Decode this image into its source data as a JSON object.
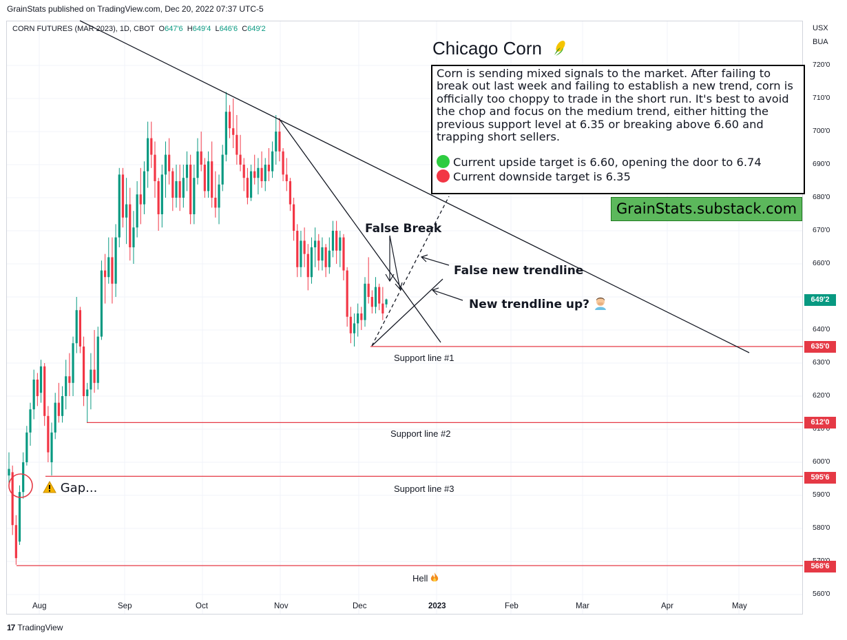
{
  "header": {
    "published": "GrainStats published on TradingView.com, Dec 20, 2022 07:37 UTC-5"
  },
  "legend": {
    "symbol": "CORN FUTURES (MAR 2023), 1D, CBOT",
    "o_label": "O",
    "o": "647'6",
    "h_label": "H",
    "h": "649'4",
    "l_label": "L",
    "l": "646'6",
    "c_label": "C",
    "c": "649'2"
  },
  "currency": {
    "line1": "USX",
    "line2": "BUA"
  },
  "title": {
    "text": "Chicago Corn",
    "icon": "corn-emoji-icon"
  },
  "textbox": {
    "paragraph": "Corn is sending mixed signals to the market. After failing to break out last week and failing to establish a new trend, corn is officially too choppy to trade in the short run. It's best to avoid the chop and focus on the medium trend, either hitting the previous support level at 6.35 or breaking above 6.60 and trapping short sellers.",
    "upside": "Current upside target is 6.60, opening the door to 6.74",
    "downside": "Current downside target is 6.35",
    "upside_color": "#2ecc40",
    "downside_color": "#f23645"
  },
  "brand": {
    "text": "GrainStats.substack.com",
    "bg": "#5cb85c"
  },
  "annotations": {
    "false_break": "False Break",
    "false_trendline": "False new trendline",
    "new_trendline": "New trendline up?",
    "new_trendline_icon": "facepalm-emoji-icon",
    "gap": "Gap...",
    "gap_icon": "warning-icon"
  },
  "support_labels": {
    "s1": "Support line #1",
    "s2": "Support line #2",
    "s3": "Support line #3",
    "hell": "Hell",
    "hell_icon": "fire-icon"
  },
  "price_tags": {
    "last": "649'2",
    "s1": "635'0",
    "s2": "612'0",
    "s3": "595'6",
    "s4": "568'6",
    "last_color": "#089981",
    "line_color": "#e53945"
  },
  "axis": {
    "y_ticks": [
      "720'0",
      "710'0",
      "700'0",
      "690'0",
      "680'0",
      "670'0",
      "660'0",
      "640'0",
      "630'0",
      "620'0",
      "610'0",
      "600'0",
      "590'0",
      "580'0",
      "570'0",
      "560'0"
    ],
    "x_ticks": [
      "Aug",
      "Sep",
      "Oct",
      "Nov",
      "Dec",
      "2023",
      "Feb",
      "Mar",
      "Apr",
      "May"
    ]
  },
  "footer": {
    "brand": "TradingView",
    "logo": "17"
  },
  "chart_data": {
    "type": "candlestick",
    "title": "CORN FUTURES (MAR 2023), 1D, CBOT",
    "ylim": [
      558,
      725
    ],
    "colors": {
      "up": "#089981",
      "down": "#f23645"
    },
    "support_levels": [
      635,
      612,
      595.75,
      568.75
    ],
    "last_price": 649.25,
    "candles": [
      {
        "o": 596,
        "h": 603,
        "l": 592,
        "c": 598
      },
      {
        "o": 597,
        "h": 599,
        "l": 578,
        "c": 581
      },
      {
        "o": 581,
        "h": 584,
        "l": 569,
        "c": 571
      },
      {
        "o": 576,
        "h": 593,
        "l": 575,
        "c": 591
      },
      {
        "o": 591,
        "h": 603,
        "l": 589,
        "c": 600
      },
      {
        "o": 600,
        "h": 611,
        "l": 599,
        "c": 609
      },
      {
        "o": 609,
        "h": 618,
        "l": 605,
        "c": 616
      },
      {
        "o": 616,
        "h": 628,
        "l": 613,
        "c": 625
      },
      {
        "o": 625,
        "h": 627,
        "l": 617,
        "c": 620
      },
      {
        "o": 621,
        "h": 631,
        "l": 618,
        "c": 629
      },
      {
        "o": 629,
        "h": 630,
        "l": 611,
        "c": 614
      },
      {
        "o": 614,
        "h": 617,
        "l": 600,
        "c": 603
      },
      {
        "o": 600,
        "h": 612,
        "l": 596,
        "c": 609
      },
      {
        "o": 609,
        "h": 621,
        "l": 607,
        "c": 618
      },
      {
        "o": 618,
        "h": 624,
        "l": 612,
        "c": 614
      },
      {
        "o": 614,
        "h": 623,
        "l": 612,
        "c": 620
      },
      {
        "o": 620,
        "h": 631,
        "l": 616,
        "c": 626
      },
      {
        "o": 626,
        "h": 633,
        "l": 620,
        "c": 624
      },
      {
        "o": 624,
        "h": 638,
        "l": 620,
        "c": 636
      },
      {
        "o": 636,
        "h": 650,
        "l": 633,
        "c": 646
      },
      {
        "o": 646,
        "h": 647,
        "l": 633,
        "c": 635
      },
      {
        "o": 635,
        "h": 638,
        "l": 617,
        "c": 620
      },
      {
        "o": 620,
        "h": 624,
        "l": 612,
        "c": 622
      },
      {
        "o": 622,
        "h": 633,
        "l": 616,
        "c": 628
      },
      {
        "o": 628,
        "h": 640,
        "l": 621,
        "c": 624
      },
      {
        "o": 624,
        "h": 641,
        "l": 622,
        "c": 638
      },
      {
        "o": 638,
        "h": 661,
        "l": 637,
        "c": 658
      },
      {
        "o": 658,
        "h": 663,
        "l": 648,
        "c": 656
      },
      {
        "o": 656,
        "h": 668,
        "l": 654,
        "c": 662
      },
      {
        "o": 662,
        "h": 668,
        "l": 648,
        "c": 654
      },
      {
        "o": 654,
        "h": 672,
        "l": 650,
        "c": 668
      },
      {
        "o": 668,
        "h": 689,
        "l": 665,
        "c": 687
      },
      {
        "o": 687,
        "h": 689,
        "l": 671,
        "c": 674
      },
      {
        "o": 674,
        "h": 686,
        "l": 666,
        "c": 678
      },
      {
        "o": 678,
        "h": 683,
        "l": 661,
        "c": 665
      },
      {
        "o": 665,
        "h": 676,
        "l": 660,
        "c": 671
      },
      {
        "o": 671,
        "h": 685,
        "l": 668,
        "c": 681
      },
      {
        "o": 681,
        "h": 689,
        "l": 672,
        "c": 678
      },
      {
        "o": 678,
        "h": 691,
        "l": 675,
        "c": 688
      },
      {
        "o": 688,
        "h": 703,
        "l": 683,
        "c": 698
      },
      {
        "o": 698,
        "h": 703,
        "l": 689,
        "c": 693
      },
      {
        "o": 693,
        "h": 697,
        "l": 680,
        "c": 685
      },
      {
        "o": 685,
        "h": 686,
        "l": 670,
        "c": 675
      },
      {
        "o": 675,
        "h": 690,
        "l": 671,
        "c": 687
      },
      {
        "o": 687,
        "h": 697,
        "l": 680,
        "c": 693
      },
      {
        "o": 693,
        "h": 698,
        "l": 684,
        "c": 688
      },
      {
        "o": 688,
        "h": 689,
        "l": 676,
        "c": 680
      },
      {
        "o": 680,
        "h": 690,
        "l": 677,
        "c": 685
      },
      {
        "o": 685,
        "h": 690,
        "l": 676,
        "c": 680
      },
      {
        "o": 680,
        "h": 690,
        "l": 677,
        "c": 686
      },
      {
        "o": 686,
        "h": 694,
        "l": 682,
        "c": 690
      },
      {
        "o": 690,
        "h": 693,
        "l": 672,
        "c": 675
      },
      {
        "o": 675,
        "h": 690,
        "l": 672,
        "c": 686
      },
      {
        "o": 686,
        "h": 698,
        "l": 684,
        "c": 694
      },
      {
        "o": 694,
        "h": 700,
        "l": 688,
        "c": 690
      },
      {
        "o": 690,
        "h": 692,
        "l": 680,
        "c": 682
      },
      {
        "o": 682,
        "h": 694,
        "l": 680,
        "c": 691
      },
      {
        "o": 691,
        "h": 697,
        "l": 677,
        "c": 680
      },
      {
        "o": 680,
        "h": 688,
        "l": 674,
        "c": 677
      },
      {
        "o": 677,
        "h": 687,
        "l": 672,
        "c": 684
      },
      {
        "o": 684,
        "h": 696,
        "l": 682,
        "c": 693
      },
      {
        "o": 693,
        "h": 712,
        "l": 691,
        "c": 706
      },
      {
        "o": 706,
        "h": 708,
        "l": 698,
        "c": 701
      },
      {
        "o": 701,
        "h": 710,
        "l": 695,
        "c": 699
      },
      {
        "o": 699,
        "h": 705,
        "l": 690,
        "c": 693
      },
      {
        "o": 693,
        "h": 699,
        "l": 688,
        "c": 690
      },
      {
        "o": 690,
        "h": 692,
        "l": 682,
        "c": 686
      },
      {
        "o": 686,
        "h": 689,
        "l": 678,
        "c": 680
      },
      {
        "o": 680,
        "h": 690,
        "l": 679,
        "c": 688
      },
      {
        "o": 688,
        "h": 693,
        "l": 684,
        "c": 686
      },
      {
        "o": 686,
        "h": 692,
        "l": 681,
        "c": 689
      },
      {
        "o": 689,
        "h": 694,
        "l": 683,
        "c": 685
      },
      {
        "o": 685,
        "h": 692,
        "l": 682,
        "c": 690
      },
      {
        "o": 690,
        "h": 695,
        "l": 685,
        "c": 688
      },
      {
        "o": 688,
        "h": 697,
        "l": 686,
        "c": 694
      },
      {
        "o": 694,
        "h": 705,
        "l": 690,
        "c": 700
      },
      {
        "o": 700,
        "h": 704,
        "l": 691,
        "c": 694
      },
      {
        "o": 694,
        "h": 695,
        "l": 685,
        "c": 687
      },
      {
        "o": 687,
        "h": 692,
        "l": 682,
        "c": 685
      },
      {
        "o": 685,
        "h": 686,
        "l": 676,
        "c": 678
      },
      {
        "o": 678,
        "h": 680,
        "l": 667,
        "c": 670
      },
      {
        "o": 670,
        "h": 672,
        "l": 656,
        "c": 659
      },
      {
        "o": 659,
        "h": 670,
        "l": 656,
        "c": 667
      },
      {
        "o": 667,
        "h": 671,
        "l": 659,
        "c": 663
      },
      {
        "o": 663,
        "h": 666,
        "l": 652,
        "c": 656
      },
      {
        "o": 656,
        "h": 668,
        "l": 654,
        "c": 665
      },
      {
        "o": 665,
        "h": 671,
        "l": 659,
        "c": 667
      },
      {
        "o": 667,
        "h": 669,
        "l": 658,
        "c": 661
      },
      {
        "o": 661,
        "h": 668,
        "l": 658,
        "c": 665
      },
      {
        "o": 665,
        "h": 666,
        "l": 656,
        "c": 659
      },
      {
        "o": 659,
        "h": 668,
        "l": 657,
        "c": 664
      },
      {
        "o": 664,
        "h": 673,
        "l": 662,
        "c": 670
      },
      {
        "o": 670,
        "h": 673,
        "l": 660,
        "c": 664
      },
      {
        "o": 664,
        "h": 670,
        "l": 659,
        "c": 668
      },
      {
        "o": 668,
        "h": 669,
        "l": 655,
        "c": 658
      },
      {
        "o": 658,
        "h": 659,
        "l": 641,
        "c": 644
      },
      {
        "o": 644,
        "h": 647,
        "l": 636,
        "c": 639
      },
      {
        "o": 639,
        "h": 645,
        "l": 635,
        "c": 642
      },
      {
        "o": 642,
        "h": 648,
        "l": 638,
        "c": 645
      },
      {
        "o": 645,
        "h": 647,
        "l": 640,
        "c": 643
      },
      {
        "o": 643,
        "h": 656,
        "l": 641,
        "c": 654
      },
      {
        "o": 654,
        "h": 662,
        "l": 648,
        "c": 650
      },
      {
        "o": 650,
        "h": 652,
        "l": 645,
        "c": 647
      },
      {
        "o": 647,
        "h": 656,
        "l": 645,
        "c": 653
      },
      {
        "o": 653,
        "h": 654,
        "l": 646,
        "c": 648
      },
      {
        "o": 648,
        "h": 653,
        "l": 643,
        "c": 645
      },
      {
        "o": 647.75,
        "h": 649.5,
        "l": 646.75,
        "c": 649.25
      }
    ]
  }
}
